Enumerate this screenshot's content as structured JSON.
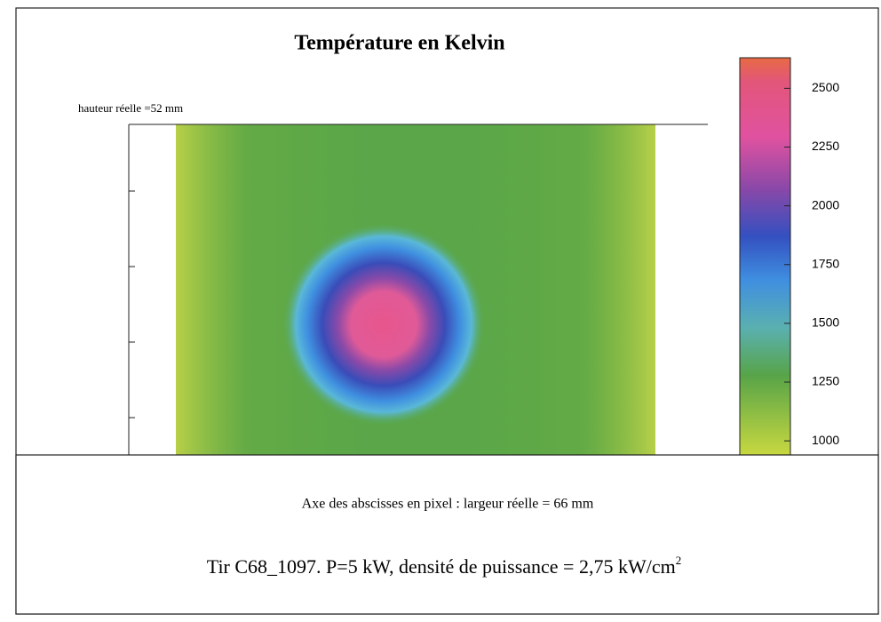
{
  "chart_data": {
    "type": "heatmap",
    "title": "Température en Kelvin",
    "y_label": "hauteur réelle =52 mm",
    "x_label": "Axe des abscisses en pixel : largeur réelle = 66 mm",
    "caption": "Tir C68_1097. P=5 kW, densité de puissance = 2,75 kW/cm",
    "caption_exponent": "2",
    "colorbar": {
      "lim": [
        940,
        2630
      ],
      "ticks": [
        1000,
        1250,
        1500,
        1750,
        2000,
        2250,
        2500
      ]
    }
  }
}
